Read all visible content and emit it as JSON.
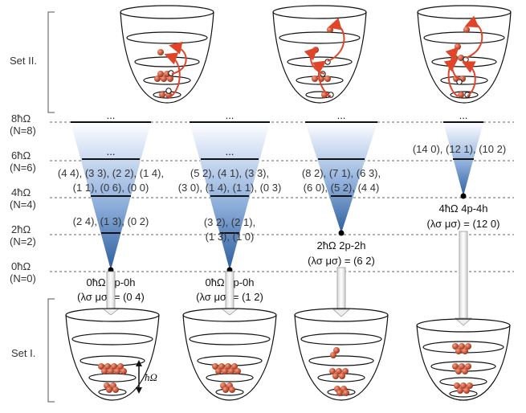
{
  "sets": {
    "top": "Set II.",
    "bottom": "Set I."
  },
  "energy_levels": [
    {
      "energy": "8ħΩ",
      "n": "(N=8)"
    },
    {
      "energy": "6ħΩ",
      "n": "(N=6)"
    },
    {
      "energy": "4ħΩ",
      "n": "(N=4)"
    },
    {
      "energy": "2ħΩ",
      "n": "(N=2)"
    },
    {
      "energy": "0ħΩ",
      "n": "(N=0)"
    }
  ],
  "columns": [
    {
      "dots_top": "...",
      "dots_mid": "...",
      "irreps_6": [
        "(4 4), (3 3), (2 2), (1 4),",
        "(1 1), (0 6), (0 0)"
      ],
      "irreps_2": [
        "(2 4), (1 3), (0 2)"
      ],
      "excitation": "0ħΩ 0p-0h",
      "quantum": "(λσ μσ) = (0 4)"
    },
    {
      "dots_top": "...",
      "dots_mid": "...",
      "irreps_6": [
        "(5 2), (4 1), (3 3),",
        "(3 0), (1 4), (1 1), (0 3)"
      ],
      "irreps_2": [
        "(3 2), (2 1),",
        "(1 3), (1 0)"
      ],
      "excitation": "0ħΩ 0p-0h",
      "quantum": "(λσ μσ) = (1 2)"
    },
    {
      "dots_top": "...",
      "irreps_6": [
        "(8 2), (7 1), (6 3),",
        "(6 0), (5 2), (4 4)"
      ],
      "excitation": "2ħΩ 2p-2h",
      "quantum": "(λσ μσ) = (6 2)"
    },
    {
      "dots_top": "...",
      "irreps_6": [
        "(14 0), (12 1), (10 2)"
      ],
      "excitation": "4ħΩ 4p-4h",
      "quantum": "(λσ μσ) = (12 0)"
    }
  ],
  "spacing_label": "ħΩ"
}
